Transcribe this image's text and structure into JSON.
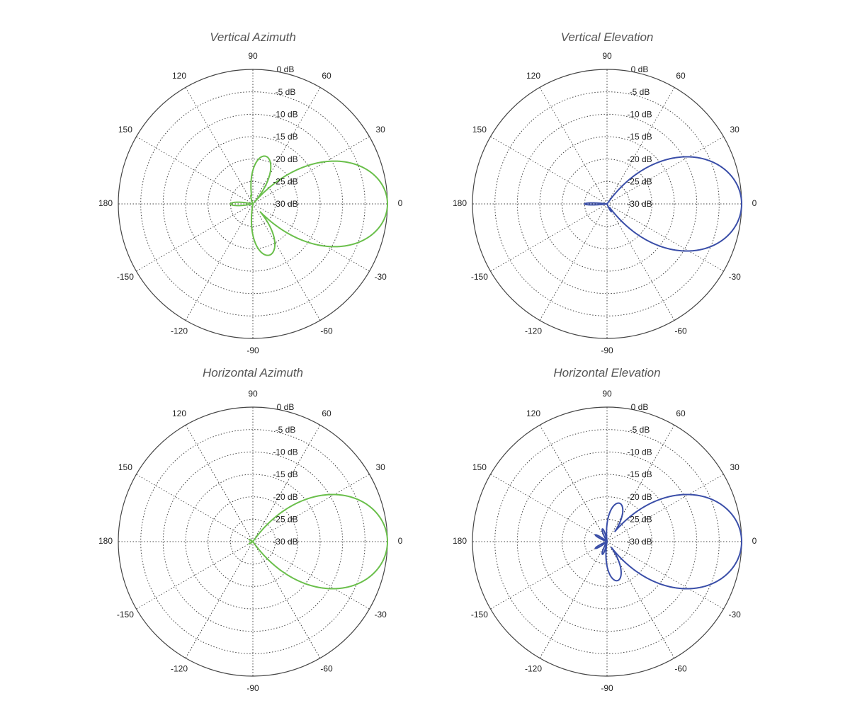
{
  "chart_data": [
    {
      "type": "polar",
      "title": "Vertical Azimuth",
      "color": "#6abf4b",
      "angle_labels": [
        "0",
        "30",
        "60",
        "90",
        "120",
        "150",
        "180",
        "-150",
        "-120",
        "-90",
        "-60",
        "-30"
      ],
      "angle_values": [
        0,
        30,
        60,
        90,
        120,
        150,
        180,
        -150,
        -120,
        -90,
        -60,
        -30
      ],
      "radial_labels": [
        "0 dB",
        "-5 dB",
        "-10 dB",
        "-15 dB",
        "-20 dB",
        "-25 dB",
        "-30 dB"
      ],
      "radial_values": [
        0,
        -5,
        -10,
        -15,
        -20,
        -25,
        -30
      ],
      "r_range_db": [
        -30,
        0
      ],
      "series": [
        {
          "lobes": [
            {
              "angle": 0,
              "db": 0,
              "width": 9
            },
            {
              "angle": 12,
              "db": -23,
              "width": 3
            },
            {
              "angle": 20,
              "db": -24,
              "width": 4
            },
            {
              "angle": 33,
              "db": -26,
              "width": 3
            },
            {
              "angle": 75,
              "db": -19,
              "width": 8
            },
            {
              "angle": 102,
              "db": -28,
              "width": 6
            },
            {
              "angle": 180,
              "db": -25,
              "width": 5
            },
            {
              "angle": -72,
              "db": -18,
              "width": 8
            },
            {
              "angle": -35,
              "db": -26,
              "width": 4
            },
            {
              "angle": -22,
              "db": -24,
              "width": 4
            },
            {
              "angle": -12,
              "db": -22,
              "width": 3
            }
          ]
        }
      ]
    },
    {
      "type": "polar",
      "title": "Vertical Elevation",
      "color": "#3a4ea8",
      "angle_labels": [
        "0",
        "30",
        "60",
        "90",
        "120",
        "150",
        "180",
        "-150",
        "-120",
        "-90",
        "-60",
        "-30"
      ],
      "angle_values": [
        0,
        30,
        60,
        90,
        120,
        150,
        180,
        -150,
        -120,
        -90,
        -60,
        -30
      ],
      "radial_labels": [
        "0 dB",
        "-5 dB",
        "-10 dB",
        "-15 dB",
        "-20 dB",
        "-25 dB",
        "-30 dB"
      ],
      "radial_values": [
        0,
        -5,
        -10,
        -15,
        -20,
        -25,
        -30
      ],
      "r_range_db": [
        -30,
        0
      ],
      "series": [
        {
          "lobes": [
            {
              "angle": 0,
              "db": 0,
              "width": 10
            },
            {
              "angle": 180,
              "db": -25,
              "width": 3
            },
            {
              "angle": -60,
              "db": -28,
              "width": 6
            },
            {
              "angle": -18,
              "db": -26,
              "width": 2
            }
          ]
        }
      ]
    },
    {
      "type": "polar",
      "title": "Horizontal Azimuth",
      "color": "#6abf4b",
      "angle_labels": [
        "0",
        "30",
        "60",
        "90",
        "120",
        "150",
        "180",
        "-150",
        "-120",
        "-90",
        "-60",
        "-30"
      ],
      "angle_values": [
        0,
        30,
        60,
        90,
        120,
        150,
        180,
        -150,
        -120,
        -90,
        -60,
        -30
      ],
      "radial_labels": [
        "0 dB",
        "-5 dB",
        "-10 dB",
        "-15 dB",
        "-20 dB",
        "-25 dB",
        "-30 dB"
      ],
      "radial_values": [
        0,
        -5,
        -10,
        -15,
        -20,
        -25,
        -30
      ],
      "r_range_db": [
        -30,
        0
      ],
      "series": [
        {
          "lobes": [
            {
              "angle": 0,
              "db": 0,
              "width": 10
            },
            {
              "angle": 15,
              "db": -26,
              "width": 3
            },
            {
              "angle": 150,
              "db": -29,
              "width": 6
            },
            {
              "angle": -150,
              "db": -29,
              "width": 6
            },
            {
              "angle": -12,
              "db": -28,
              "width": 3
            }
          ]
        }
      ]
    },
    {
      "type": "polar",
      "title": "Horizontal Elevation",
      "color": "#3a4ea8",
      "angle_labels": [
        "0",
        "30",
        "60",
        "90",
        "120",
        "150",
        "180",
        "-150",
        "-120",
        "-90",
        "-60",
        "-30"
      ],
      "angle_values": [
        0,
        30,
        60,
        90,
        120,
        150,
        180,
        -150,
        -120,
        -90,
        -60,
        -30
      ],
      "radial_labels": [
        "0 dB",
        "-5 dB",
        "-10 dB",
        "-15 dB",
        "-20 dB",
        "-25 dB",
        "-30 dB"
      ],
      "radial_values": [
        0,
        -5,
        -10,
        -15,
        -20,
        -25,
        -30
      ],
      "r_range_db": [
        -30,
        0
      ],
      "series": [
        {
          "lobes": [
            {
              "angle": 0,
              "db": 0,
              "width": 10
            },
            {
              "angle": 10,
              "db": -22,
              "width": 3
            },
            {
              "angle": 22,
              "db": -24,
              "width": 4
            },
            {
              "angle": 35,
              "db": -26,
              "width": 4
            },
            {
              "angle": 72,
              "db": -21,
              "width": 8
            },
            {
              "angle": 110,
              "db": -27,
              "width": 6
            },
            {
              "angle": 150,
              "db": -27,
              "width": 5
            },
            {
              "angle": -150,
              "db": -27,
              "width": 5
            },
            {
              "angle": -75,
              "db": -21,
              "width": 8
            },
            {
              "angle": -110,
              "db": -27,
              "width": 6
            },
            {
              "angle": -30,
              "db": -24,
              "width": 4
            },
            {
              "angle": -15,
              "db": -24,
              "width": 3
            }
          ]
        }
      ]
    }
  ]
}
